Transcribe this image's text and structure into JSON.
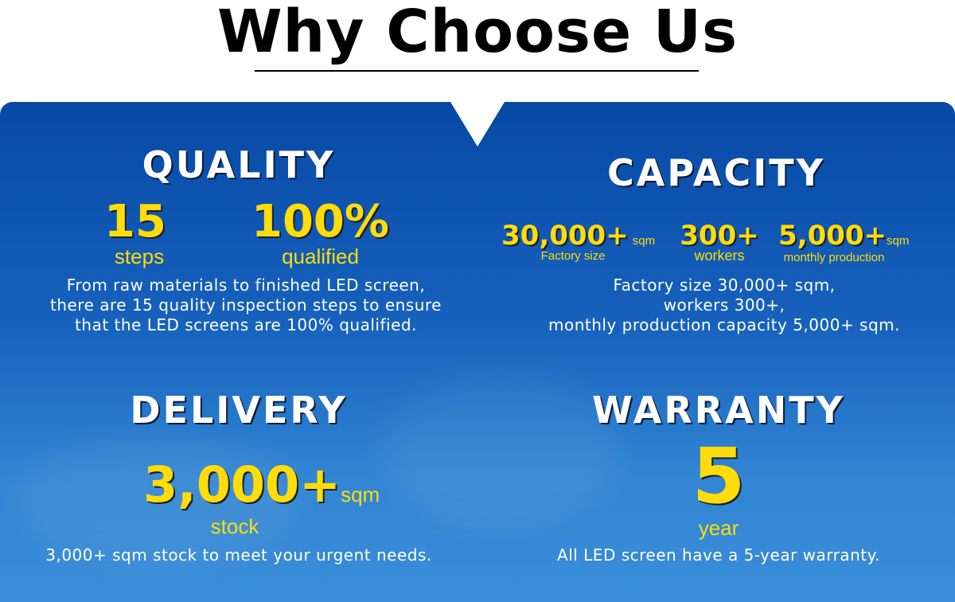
{
  "title": "Why Choose Us",
  "colors": {
    "panel_top": "#0649a5",
    "panel_bottom": "#3a8dd8",
    "accent": "#ffdc0a"
  },
  "quality": {
    "heading": "QUALITY",
    "stat1": {
      "value": "15",
      "label": "steps"
    },
    "stat2": {
      "value": "100%",
      "label": "qualified"
    },
    "desc": [
      "From raw materials to finished LED screen,",
      "there are 15 quality inspection steps to ensure",
      "that the LED screens are 100% qualified."
    ]
  },
  "capacity": {
    "heading": "CAPACITY",
    "stat1": {
      "value": "30,000+",
      "unit": "sqm",
      "label": "Factory size"
    },
    "stat2": {
      "value": "300+",
      "label": "workers"
    },
    "stat3": {
      "value": "5,000+",
      "unit": "sqm",
      "label": "monthly production"
    },
    "desc": [
      "Factory size 30,000+ sqm,",
      "workers 300+,",
      "monthly production capacity 5,000+ sqm."
    ]
  },
  "delivery": {
    "heading": "DELIVERY",
    "value": "3,000+",
    "unit": "sqm",
    "label": "stock",
    "desc": "3,000+ sqm stock to meet your urgent needs."
  },
  "warranty": {
    "heading": "WARRANTY",
    "value": "5",
    "label": "year",
    "desc": "All LED screen have a 5-year warranty."
  }
}
